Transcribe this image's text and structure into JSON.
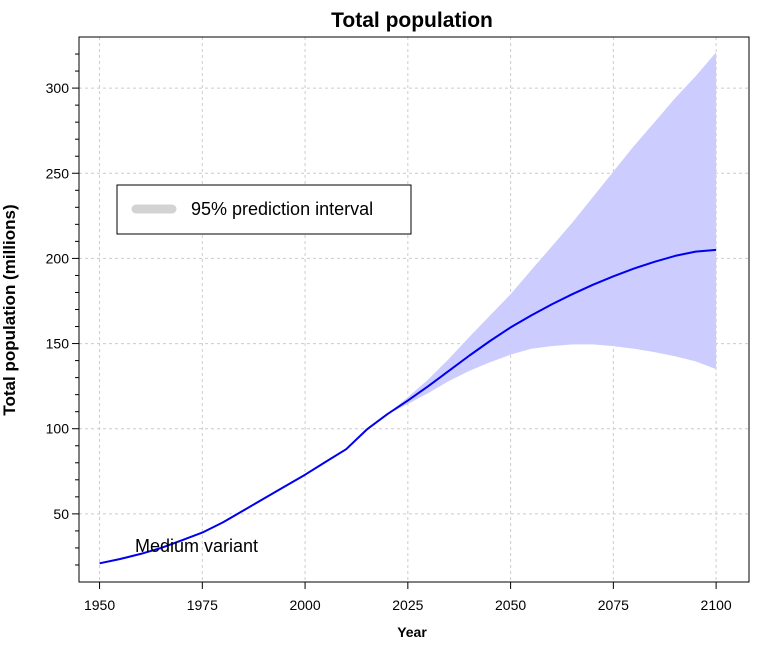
{
  "chart_data": {
    "type": "area",
    "title": "Total population",
    "xlabel": "Year",
    "ylabel": "Total population (millions)",
    "xlim": [
      1945,
      2108
    ],
    "ylim": [
      10,
      330
    ],
    "xticks": [
      1950,
      1975,
      2000,
      2025,
      2050,
      2075,
      2100
    ],
    "yticks": [
      50,
      100,
      150,
      200,
      250,
      300
    ],
    "grid": true,
    "legend": {
      "position": "top-left",
      "entries": [
        "95% prediction interval"
      ]
    },
    "annotations": [
      "Medium variant"
    ],
    "colors": {
      "median_line": "#0000ee",
      "interval_fill": "#ccccff",
      "legend_swatch": "#d3d3d3"
    },
    "series": [
      {
        "name": "Medium variant",
        "x": [
          1950,
          1955,
          1960,
          1965,
          1970,
          1975,
          1980,
          1985,
          1990,
          1995,
          2000,
          2005,
          2010,
          2015,
          2020,
          2025,
          2030,
          2035,
          2040,
          2045,
          2050,
          2055,
          2060,
          2065,
          2070,
          2075,
          2080,
          2085,
          2090,
          2095,
          2100
        ],
        "y": [
          21,
          23.5,
          26.5,
          30,
          34.5,
          39,
          45,
          52,
          59,
          66,
          73,
          80.5,
          88,
          99.5,
          108.5,
          116.5,
          125,
          134,
          143,
          151.5,
          159.5,
          166.5,
          173,
          179,
          184.5,
          189.5,
          194,
          198,
          201.5,
          204,
          205
        ]
      },
      {
        "name": "95% prediction interval",
        "x": [
          2020,
          2025,
          2030,
          2035,
          2040,
          2045,
          2050,
          2055,
          2060,
          2065,
          2070,
          2075,
          2080,
          2085,
          2090,
          2095,
          2100
        ],
        "lower": [
          108.5,
          114.5,
          121,
          128,
          134,
          139,
          143.5,
          147,
          148.5,
          149.5,
          149.5,
          148.5,
          147,
          145,
          142.5,
          139.5,
          135
        ],
        "upper": [
          108.5,
          118.5,
          129,
          141,
          154,
          166.5,
          179,
          193,
          207,
          221,
          236,
          251,
          266,
          280,
          294,
          307,
          321
        ]
      }
    ]
  }
}
